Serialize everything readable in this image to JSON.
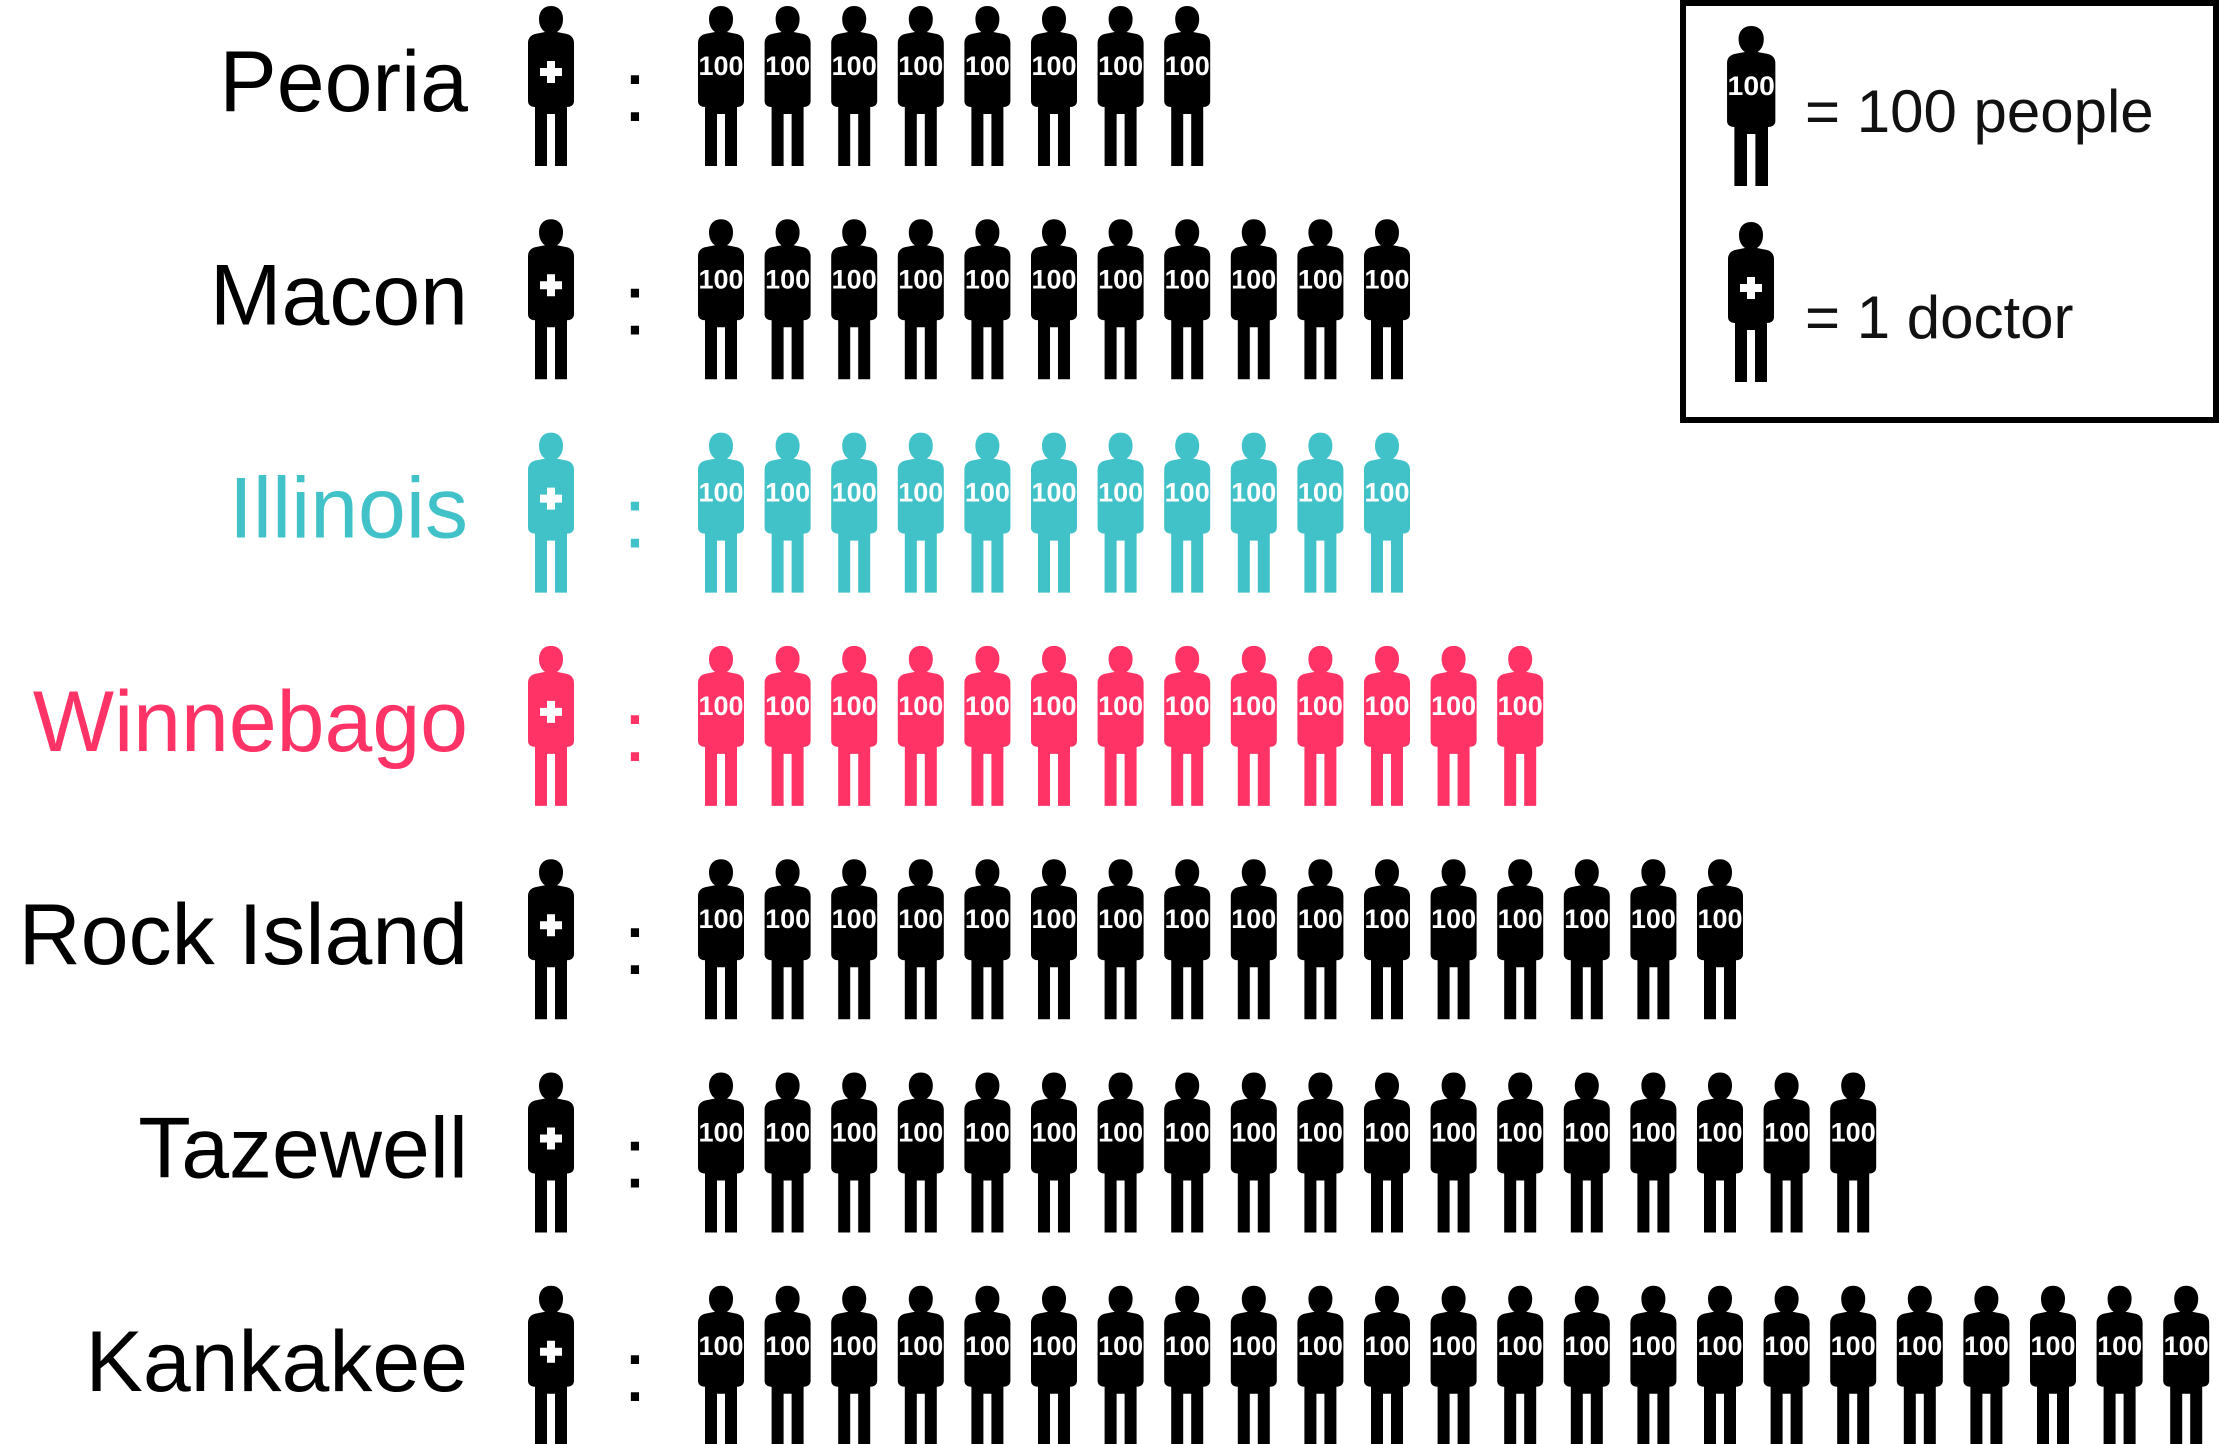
{
  "chart_data": {
    "type": "pictogram",
    "unit_label": "100",
    "colors": {
      "default": "#000000",
      "state": "#41c2c9",
      "highlight": "#ff3366",
      "icon_text": "#ffffff"
    },
    "rows": [
      {
        "label": "Peoria",
        "doctors": 1,
        "people_per_doctor": 800,
        "icons": 8,
        "color_key": "default"
      },
      {
        "label": "Macon",
        "doctors": 1,
        "people_per_doctor": 1100,
        "icons": 11,
        "color_key": "default"
      },
      {
        "label": "Illinois",
        "doctors": 1,
        "people_per_doctor": 1100,
        "icons": 11,
        "color_key": "state"
      },
      {
        "label": "Winnebago",
        "doctors": 1,
        "people_per_doctor": 1300,
        "icons": 13,
        "color_key": "highlight"
      },
      {
        "label": "Rock Island",
        "doctors": 1,
        "people_per_doctor": 1600,
        "icons": 16,
        "color_key": "default"
      },
      {
        "label": "Tazewell",
        "doctors": 1,
        "people_per_doctor": 1800,
        "icons": 18,
        "color_key": "default"
      },
      {
        "label": "Kankakee",
        "doctors": 1,
        "people_per_doctor": 2300,
        "icons": 23,
        "color_key": "default"
      }
    ],
    "separator": ":",
    "legend": {
      "position": "top-right",
      "items": [
        {
          "icon": "person-100-icon",
          "icon_text": "100",
          "text": "= 100 people"
        },
        {
          "icon": "doctor-icon",
          "text": "= 1 doctor"
        }
      ]
    }
  }
}
